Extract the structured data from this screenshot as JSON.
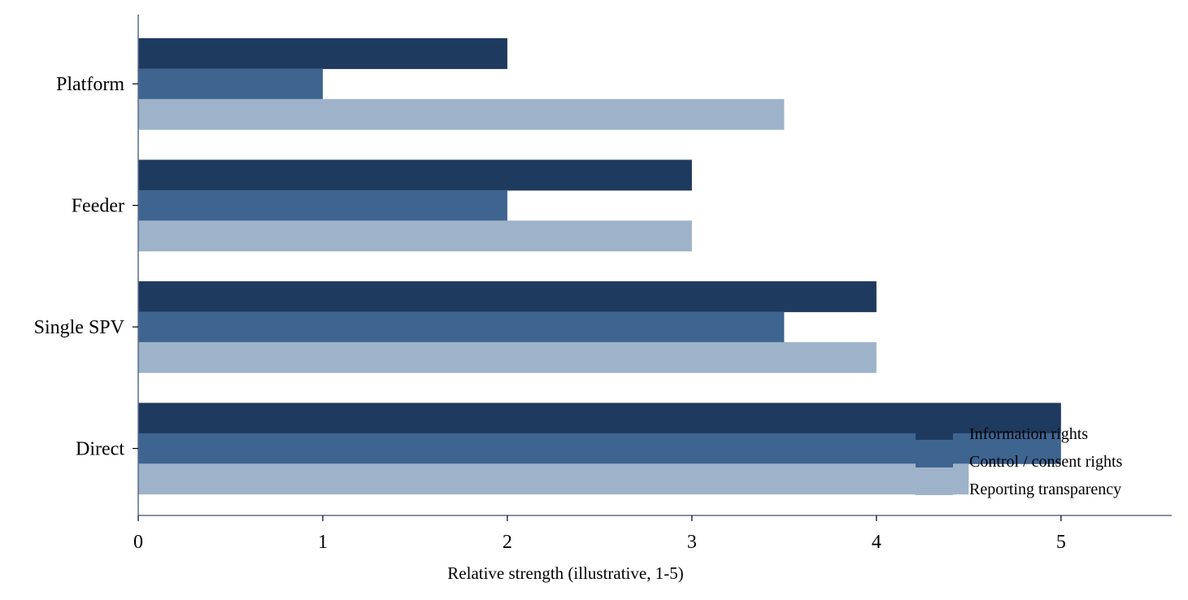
{
  "chart_data": {
    "type": "bar",
    "orientation": "horizontal",
    "categories": [
      "Direct",
      "Single SPV",
      "Feeder",
      "Platform"
    ],
    "series": [
      {
        "name": "Information rights",
        "values": [
          5,
          4,
          3,
          2
        ],
        "color": "#1f3a5f"
      },
      {
        "name": "Control / consent rights",
        "values": [
          5,
          3.5,
          2,
          1
        ],
        "color": "#3e6490"
      },
      {
        "name": "Reporting transparency",
        "values": [
          4.5,
          4,
          3,
          3.5
        ],
        "color": "#9eb3c9"
      }
    ],
    "xticks": [
      "0",
      "1",
      "2",
      "3",
      "4",
      "5"
    ],
    "xlabel": "Relative strength (illustrative, 1-5)",
    "ylabel": "",
    "title": "",
    "xlim": [
      0,
      5.6
    ],
    "grid": false,
    "legend_position": "bottom-right",
    "axis_color": "#5a6e85"
  }
}
